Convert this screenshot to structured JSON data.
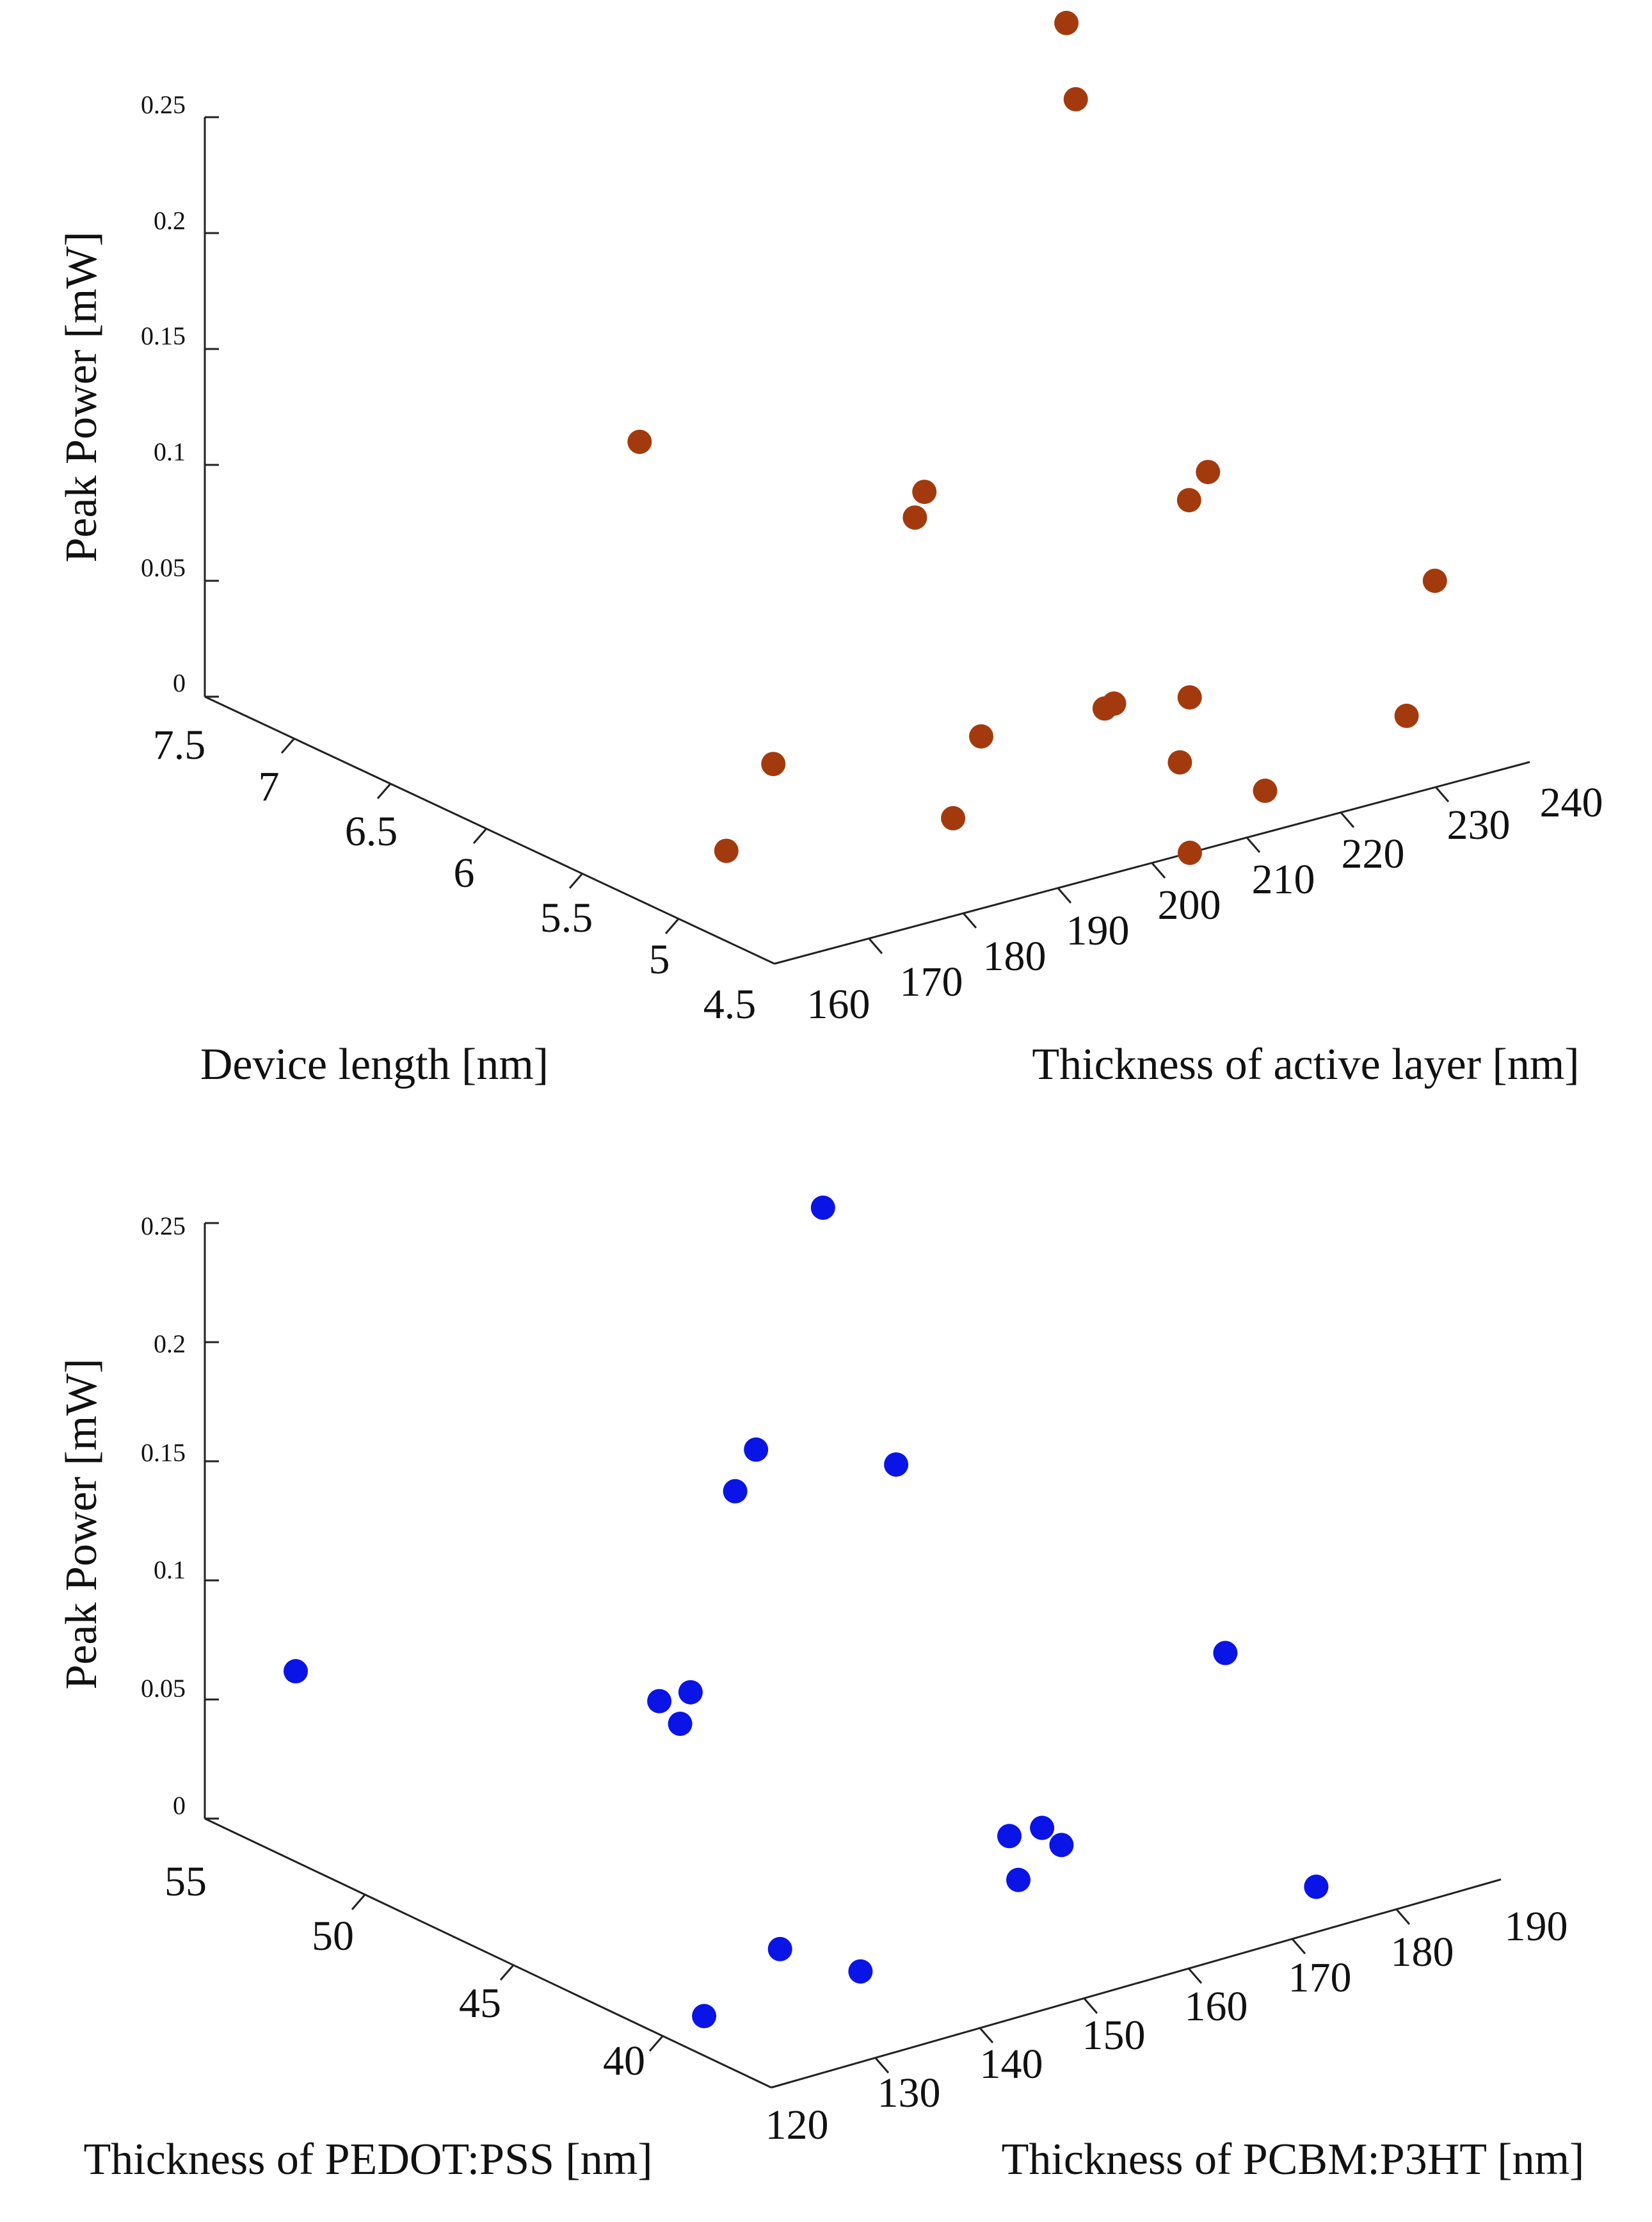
{
  "chart_data": [
    {
      "type": "scatter3d",
      "ylabel": "Peak Power [mW]",
      "xlabel": "Device length [nm]",
      "zlabel": "Thickness of active layer [nm]",
      "zlim": [
        0,
        0.25
      ],
      "z_ticks": [
        "0",
        "0.05",
        "0.1",
        "0.15",
        "0.2",
        "0.25"
      ],
      "x_lim": [
        4.5,
        7.5
      ],
      "x_ticks": [
        "7.5",
        "7",
        "6.5",
        "6",
        "5.5",
        "5",
        "4.5"
      ],
      "y_lim": [
        160,
        240
      ],
      "y_ticks": [
        "160",
        "170",
        "180",
        "190",
        "200",
        "210",
        "220",
        "230",
        "240"
      ],
      "marker_color": "#a33a0d",
      "points": [
        {
          "len": 5.2,
          "thick": 205,
          "power": 0.33
        },
        {
          "len": 5.3,
          "thick": 208,
          "power": 0.29
        },
        {
          "len": 7.0,
          "thick": 196,
          "power": 0.09
        },
        {
          "len": 5.6,
          "thick": 198,
          "power": 0.12
        },
        {
          "len": 5.6,
          "thick": 197,
          "power": 0.11
        },
        {
          "len": 5.2,
          "thick": 220,
          "power": 0.12
        },
        {
          "len": 5.2,
          "thick": 218,
          "power": 0.11
        },
        {
          "len": 4.7,
          "thick": 199,
          "power": 0.06
        },
        {
          "len": 4.8,
          "thick": 202,
          "power": 0.055
        },
        {
          "len": 4.7,
          "thick": 208,
          "power": 0.055
        },
        {
          "len": 5.6,
          "thick": 182,
          "power": 0.02
        },
        {
          "len": 5.2,
          "thick": 193,
          "power": 0.0
        },
        {
          "len": 5.4,
          "thick": 200,
          "power": 0.02
        },
        {
          "len": 5.0,
          "thick": 213,
          "power": 0.01
        },
        {
          "len": 4.9,
          "thick": 238,
          "power": 0.065
        },
        {
          "len": 4.9,
          "thick": 235,
          "power": 0.01
        },
        {
          "len": 4.8,
          "thick": 218,
          "power": 0.0
        },
        {
          "len": 5.4,
          "thick": 173,
          "power": 0.0
        },
        {
          "len": 4.5,
          "thick": 204,
          "power": 0.0
        }
      ]
    },
    {
      "type": "scatter3d",
      "ylabel": "Peak Power [mW]",
      "xlabel": "Thickness of PEDOT:PSS [nm]",
      "zlabel": "Thickness of PCBM:P3HT [nm]",
      "zlim": [
        0,
        0.25
      ],
      "z_ticks": [
        "0",
        "0.05",
        "0.1",
        "0.15",
        "0.2",
        "0.25"
      ],
      "x_lim": [
        38,
        57
      ],
      "x_ticks": [
        "55",
        "50",
        "45",
        "40"
      ],
      "y_lim": [
        120,
        190
      ],
      "y_ticks": [
        "120",
        "130",
        "140",
        "150",
        "160",
        "170",
        "180",
        "190"
      ],
      "marker_color": "#0a14e6",
      "points": [
        {
          "pedot": 52,
          "pcbm": 165,
          "power": 0.23
        },
        {
          "pedot": 45,
          "pcbm": 152,
          "power": 0.18
        },
        {
          "pedot": 49,
          "pcbm": 150,
          "power": 0.165
        },
        {
          "pedot": 49,
          "pcbm": 148,
          "power": 0.15
        },
        {
          "pedot": 47,
          "pcbm": 138,
          "power": 0.09
        },
        {
          "pedot": 47,
          "pcbm": 137,
          "power": 0.078
        },
        {
          "pedot": 47,
          "pcbm": 135,
          "power": 0.09
        },
        {
          "pedot": 55,
          "pcbm": 123,
          "power": 0.07
        },
        {
          "pedot": 42,
          "pcbm": 175,
          "power": 0.09
        },
        {
          "pedot": 44,
          "pcbm": 160,
          "power": 0.02
        },
        {
          "pedot": 43,
          "pcbm": 158,
          "power": 0.01
        },
        {
          "pedot": 44,
          "pcbm": 165,
          "power": 0.01
        },
        {
          "pedot": 45,
          "pcbm": 166,
          "power": 0.01
        },
        {
          "pedot": 44,
          "pcbm": 138,
          "power": 0.0
        },
        {
          "pedot": 42,
          "pcbm": 140,
          "power": 0.0
        },
        {
          "pedot": 40,
          "pcbm": 178,
          "power": 0.0
        },
        {
          "pedot": 40,
          "pcbm": 178,
          "power": 0.0
        },
        {
          "pedot": 42,
          "pcbm": 125,
          "power": 0.0
        }
      ]
    }
  ]
}
